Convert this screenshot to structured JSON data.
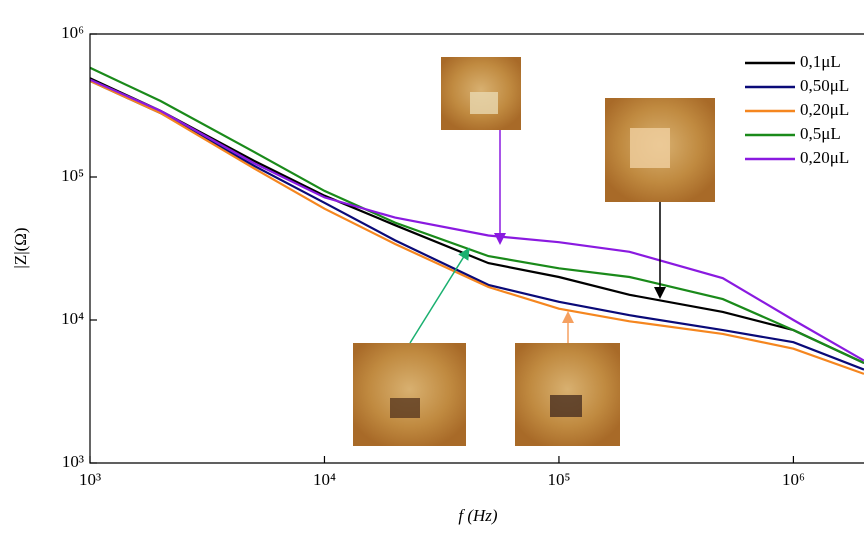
{
  "chart_data": {
    "type": "line",
    "x_label": "f (Hz)",
    "y_label": "|Z|(Ω)",
    "log_x": true,
    "log_y": true,
    "legend": "top-right",
    "xlim": [
      1000,
      2000000
    ],
    "ylim": [
      1000,
      1000000
    ],
    "xticks": [
      {
        "value": 1000,
        "label": "10³"
      },
      {
        "value": 10000,
        "label": "10⁴"
      },
      {
        "value": 100000,
        "label": "10⁵"
      },
      {
        "value": 1000000,
        "label": "10⁶"
      }
    ],
    "yticks": [
      {
        "value": 1000,
        "label": "10³"
      },
      {
        "value": 10000,
        "label": "10⁴"
      },
      {
        "value": 100000,
        "label": "10⁵"
      },
      {
        "value": 1000000,
        "label": "10⁶"
      }
    ],
    "x": [
      1000,
      2000,
      5000,
      10000,
      20000,
      50000,
      100000,
      200000,
      500000,
      1000000,
      2000000
    ],
    "series": [
      {
        "name": "0,1μL",
        "color": "#000000",
        "values": [
          490000,
          290000,
          130000,
          74000,
          46000,
          25000,
          20000,
          15000,
          11400,
          8500,
          5000
        ]
      },
      {
        "name": "0,50μL",
        "color": "#0a0a78",
        "values": [
          470000,
          280000,
          120000,
          66000,
          36000,
          17600,
          13400,
          10800,
          8500,
          7000,
          4500
        ]
      },
      {
        "name": "0,20μL",
        "color": "#f5861f",
        "values": [
          470000,
          280000,
          115000,
          60000,
          34000,
          17000,
          12000,
          9800,
          8000,
          6300,
          4200
        ]
      },
      {
        "name": "0,5μL",
        "color": "#1a8a1a",
        "values": [
          580000,
          340000,
          150000,
          80000,
          48000,
          28000,
          23000,
          20000,
          14000,
          8500,
          5000
        ]
      },
      {
        "name": "0,20μL",
        "color": "#8a1ae0",
        "values": [
          480000,
          290000,
          125000,
          72000,
          52000,
          39000,
          35000,
          30000,
          19600,
          10000,
          5200
        ]
      }
    ]
  }
}
